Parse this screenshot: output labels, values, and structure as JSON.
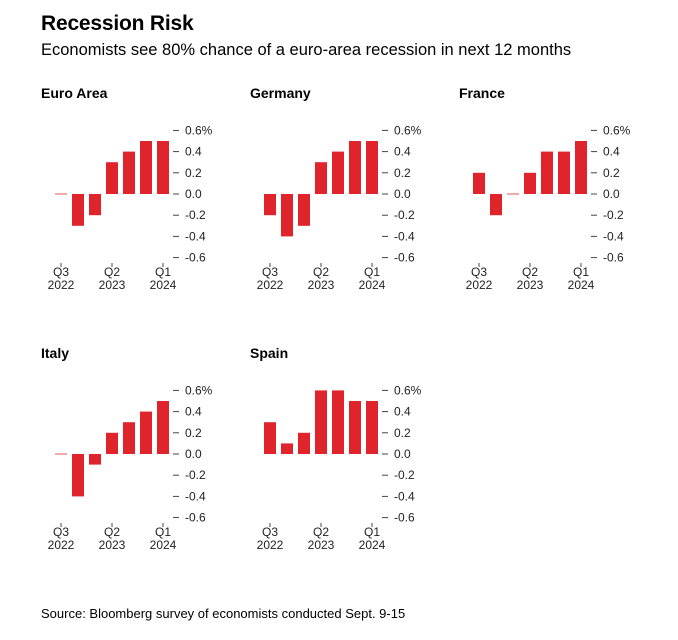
{
  "header": {
    "title": "Recession Risk",
    "subtitle": "Economists see 80% chance of a euro-area recession in next 12 months"
  },
  "footer": {
    "source": "Source: Bloomberg survey of economists conducted Sept. 9-15"
  },
  "colors": {
    "bar": "#e0242b",
    "axis": "#444444",
    "text": "#222222"
  },
  "chart_data": [
    {
      "type": "bar",
      "title": "Euro Area",
      "categories": [
        "Q3 2022",
        "Q4 2022",
        "Q1 2023",
        "Q2 2023",
        "Q3 2023",
        "Q4 2023",
        "Q1 2024",
        "Q2 2024"
      ],
      "values": [
        0.0,
        -0.3,
        -0.2,
        0.3,
        0.4,
        0.5,
        0.5,
        0.0
      ],
      "ylim": [
        -0.6,
        0.6
      ],
      "yticks": [
        "0.6%",
        "0.4",
        "0.2",
        "0.0",
        "-0.2",
        "-0.4",
        "-0.6"
      ],
      "xticks": [
        {
          "index": 0,
          "q": "Q3",
          "y": "2022"
        },
        {
          "index": 3,
          "q": "Q2",
          "y": "2023"
        },
        {
          "index": 6,
          "q": "Q1",
          "y": "2024"
        }
      ]
    },
    {
      "type": "bar",
      "title": "Germany",
      "categories": [
        "Q3 2022",
        "Q4 2022",
        "Q1 2023",
        "Q2 2023",
        "Q3 2023",
        "Q4 2023",
        "Q1 2024",
        "Q2 2024"
      ],
      "values": [
        -0.2,
        -0.4,
        -0.3,
        0.3,
        0.4,
        0.5,
        0.5,
        0.0
      ],
      "ylim": [
        -0.6,
        0.6
      ],
      "yticks": [
        "0.6%",
        "0.4",
        "0.2",
        "0.0",
        "-0.2",
        "-0.4",
        "-0.6"
      ],
      "xticks": [
        {
          "index": 0,
          "q": "Q3",
          "y": "2022"
        },
        {
          "index": 3,
          "q": "Q2",
          "y": "2023"
        },
        {
          "index": 6,
          "q": "Q1",
          "y": "2024"
        }
      ]
    },
    {
      "type": "bar",
      "title": "France",
      "categories": [
        "Q3 2022",
        "Q4 2022",
        "Q1 2023",
        "Q2 2023",
        "Q3 2023",
        "Q4 2023",
        "Q1 2024",
        "Q2 2024"
      ],
      "values": [
        0.2,
        -0.2,
        0.0,
        0.2,
        0.4,
        0.4,
        0.5,
        0.0
      ],
      "ylim": [
        -0.6,
        0.6
      ],
      "yticks": [
        "0.6%",
        "0.4",
        "0.2",
        "0.0",
        "-0.2",
        "-0.4",
        "-0.6"
      ],
      "xticks": [
        {
          "index": 0,
          "q": "Q3",
          "y": "2022"
        },
        {
          "index": 3,
          "q": "Q2",
          "y": "2023"
        },
        {
          "index": 6,
          "q": "Q1",
          "y": "2024"
        }
      ]
    },
    {
      "type": "bar",
      "title": "Italy",
      "categories": [
        "Q3 2022",
        "Q4 2022",
        "Q1 2023",
        "Q2 2023",
        "Q3 2023",
        "Q4 2023",
        "Q1 2024",
        "Q2 2024"
      ],
      "values": [
        0.0,
        -0.4,
        -0.1,
        0.2,
        0.3,
        0.4,
        0.5,
        0.0
      ],
      "ylim": [
        -0.6,
        0.6
      ],
      "yticks": [
        "0.6%",
        "0.4",
        "0.2",
        "0.0",
        "-0.2",
        "-0.4",
        "-0.6"
      ],
      "xticks": [
        {
          "index": 0,
          "q": "Q3",
          "y": "2022"
        },
        {
          "index": 3,
          "q": "Q2",
          "y": "2023"
        },
        {
          "index": 6,
          "q": "Q1",
          "y": "2024"
        }
      ]
    },
    {
      "type": "bar",
      "title": "Spain",
      "categories": [
        "Q3 2022",
        "Q4 2022",
        "Q1 2023",
        "Q2 2023",
        "Q3 2023",
        "Q4 2023",
        "Q1 2024",
        "Q2 2024"
      ],
      "values": [
        0.3,
        0.1,
        0.2,
        0.6,
        0.6,
        0.5,
        0.5,
        0.0
      ],
      "ylim": [
        -0.6,
        0.6
      ],
      "yticks": [
        "0.6%",
        "0.4",
        "0.2",
        "0.0",
        "-0.2",
        "-0.4",
        "-0.6"
      ],
      "xticks": [
        {
          "index": 0,
          "q": "Q3",
          "y": "2022"
        },
        {
          "index": 3,
          "q": "Q2",
          "y": "2023"
        },
        {
          "index": 6,
          "q": "Q1",
          "y": "2024"
        }
      ]
    }
  ]
}
